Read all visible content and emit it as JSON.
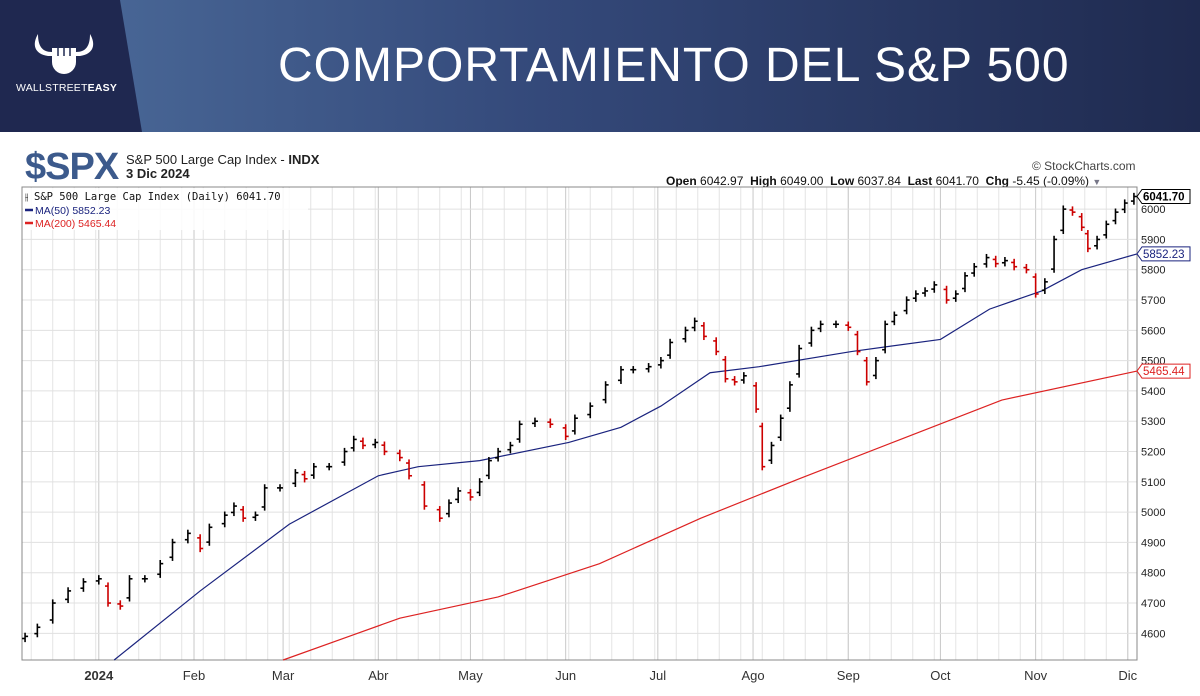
{
  "banner": {
    "title": "COMPORTAMIENTO DEL S&P 500",
    "logo_text_a": "WALLSTREET",
    "logo_text_b": "EASY"
  },
  "header": {
    "symbol": "$SPX",
    "name": "S&P 500 Large Cap Index - ",
    "exchange": "INDX",
    "date": "3 Dic 2024",
    "copyright": "© StockCharts.com"
  },
  "ohlc": {
    "open_label": "Open",
    "open": "6042.97",
    "high_label": "High",
    "high": "6049.00",
    "low_label": "Low",
    "low": "6037.84",
    "last_label": "Last",
    "last": "6041.70",
    "chg_label": "Chg",
    "chg": "-5.45 (-0.09%)"
  },
  "legend": {
    "main": "S&P 500 Large Cap Index (Daily) 6041.70",
    "ma50": "MA(50) 5852.23",
    "ma200": "MA(200) 5465.44"
  },
  "colors": {
    "up": "#000000",
    "down": "#cc0000",
    "ma50": "#1a237e",
    "ma200": "#dd2222",
    "banner_dark": "#1f2850",
    "symbol": "#3c5a8c"
  },
  "chart_data": {
    "type": "ohlc",
    "x_unit": "days since 1 Jan 2024",
    "xlim": [
      -25,
      338
    ],
    "ylim": [
      4512,
      6073
    ],
    "yticks": [
      4600,
      4700,
      4800,
      4900,
      5000,
      5100,
      5200,
      5300,
      5400,
      5500,
      5600,
      5700,
      5800,
      5900,
      6000
    ],
    "xticks": [
      {
        "day": 0,
        "label": "2024"
      },
      {
        "day": 31,
        "label": "Feb"
      },
      {
        "day": 60,
        "label": "Mar"
      },
      {
        "day": 91,
        "label": "Abr"
      },
      {
        "day": 121,
        "label": "May"
      },
      {
        "day": 152,
        "label": "Jun"
      },
      {
        "day": 182,
        "label": "Jul"
      },
      {
        "day": 213,
        "label": "Ago"
      },
      {
        "day": 244,
        "label": "Sep"
      },
      {
        "day": 274,
        "label": "Oct"
      },
      {
        "day": 305,
        "label": "Nov"
      },
      {
        "day": 335,
        "label": "Dic"
      }
    ],
    "price": [
      [
        -24,
        4590
      ],
      [
        -20,
        4620
      ],
      [
        -15,
        4700
      ],
      [
        -10,
        4740
      ],
      [
        -5,
        4770
      ],
      [
        0,
        4780
      ],
      [
        3,
        4700
      ],
      [
        7,
        4690
      ],
      [
        10,
        4780
      ],
      [
        15,
        4780
      ],
      [
        20,
        4830
      ],
      [
        24,
        4900
      ],
      [
        29,
        4930
      ],
      [
        33,
        4880
      ],
      [
        36,
        4950
      ],
      [
        41,
        4990
      ],
      [
        44,
        5020
      ],
      [
        47,
        4980
      ],
      [
        51,
        4990
      ],
      [
        54,
        5080
      ],
      [
        59,
        5080
      ],
      [
        64,
        5130
      ],
      [
        67,
        5110
      ],
      [
        70,
        5150
      ],
      [
        75,
        5150
      ],
      [
        80,
        5200
      ],
      [
        83,
        5240
      ],
      [
        86,
        5220
      ],
      [
        90,
        5230
      ],
      [
        93,
        5200
      ],
      [
        98,
        5180
      ],
      [
        101,
        5120
      ],
      [
        106,
        5020
      ],
      [
        111,
        4980
      ],
      [
        114,
        5030
      ],
      [
        117,
        5070
      ],
      [
        121,
        5050
      ],
      [
        124,
        5100
      ],
      [
        127,
        5170
      ],
      [
        130,
        5200
      ],
      [
        134,
        5220
      ],
      [
        137,
        5290
      ],
      [
        142,
        5300
      ],
      [
        147,
        5290
      ],
      [
        152,
        5250
      ],
      [
        155,
        5310
      ],
      [
        160,
        5350
      ],
      [
        165,
        5420
      ],
      [
        170,
        5470
      ],
      [
        174,
        5470
      ],
      [
        179,
        5480
      ],
      [
        183,
        5500
      ],
      [
        186,
        5560
      ],
      [
        191,
        5600
      ],
      [
        194,
        5630
      ],
      [
        197,
        5580
      ],
      [
        201,
        5530
      ],
      [
        204,
        5440
      ],
      [
        207,
        5430
      ],
      [
        210,
        5450
      ],
      [
        214,
        5340
      ],
      [
        216,
        5150
      ],
      [
        219,
        5220
      ],
      [
        222,
        5310
      ],
      [
        225,
        5420
      ],
      [
        228,
        5540
      ],
      [
        232,
        5600
      ],
      [
        235,
        5620
      ],
      [
        240,
        5620
      ],
      [
        244,
        5610
      ],
      [
        247,
        5530
      ],
      [
        250,
        5430
      ],
      [
        253,
        5500
      ],
      [
        256,
        5620
      ],
      [
        259,
        5650
      ],
      [
        263,
        5700
      ],
      [
        266,
        5720
      ],
      [
        269,
        5730
      ],
      [
        272,
        5750
      ],
      [
        276,
        5700
      ],
      [
        279,
        5720
      ],
      [
        282,
        5780
      ],
      [
        285,
        5810
      ],
      [
        289,
        5840
      ],
      [
        292,
        5820
      ],
      [
        295,
        5830
      ],
      [
        298,
        5810
      ],
      [
        302,
        5800
      ],
      [
        305,
        5720
      ],
      [
        308,
        5760
      ],
      [
        311,
        5900
      ],
      [
        314,
        6000
      ],
      [
        317,
        5990
      ],
      [
        320,
        5940
      ],
      [
        322,
        5870
      ],
      [
        325,
        5900
      ],
      [
        328,
        5950
      ],
      [
        331,
        5990
      ],
      [
        334,
        6020
      ],
      [
        337,
        6041.7
      ]
    ],
    "ma50": [
      [
        5,
        4512
      ],
      [
        33,
        4740
      ],
      [
        62,
        4960
      ],
      [
        91,
        5120
      ],
      [
        104,
        5150
      ],
      [
        124,
        5170
      ],
      [
        153,
        5230
      ],
      [
        170,
        5280
      ],
      [
        183,
        5350
      ],
      [
        199,
        5460
      ],
      [
        215,
        5480
      ],
      [
        245,
        5530
      ],
      [
        274,
        5570
      ],
      [
        290,
        5670
      ],
      [
        307,
        5730
      ],
      [
        320,
        5800
      ],
      [
        338,
        5852.23
      ]
    ],
    "ma200": [
      [
        60,
        4512
      ],
      [
        98,
        4650
      ],
      [
        130,
        4720
      ],
      [
        163,
        4830
      ],
      [
        196,
        4980
      ],
      [
        228,
        5110
      ],
      [
        261,
        5240
      ],
      [
        294,
        5370
      ],
      [
        338,
        5465.44
      ]
    ],
    "labels": {
      "last": "6041.70",
      "ma50": "5852.23",
      "ma200": "5465.44"
    }
  }
}
